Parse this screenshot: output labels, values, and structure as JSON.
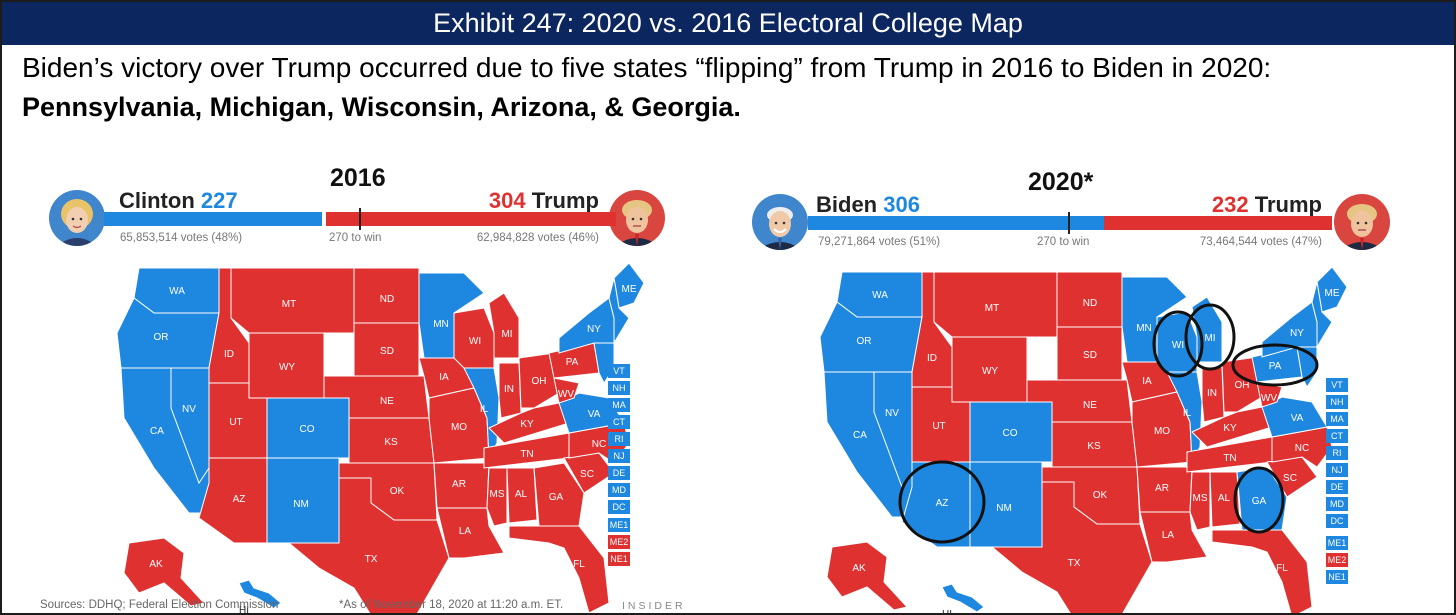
{
  "header": {
    "title": "Exhibit 247: 2020 vs. 2016 Electoral College Map",
    "subtitle_line1": "Biden’s victory over Trump occurred due to five states “flipping” from Trump in 2016 to Biden in 2020:",
    "subtitle_line2": "Pennsylvania, Michigan, Wisconsin, Arizona, & Georgia."
  },
  "colors": {
    "dem": "#1e87e0",
    "rep": "#e03131",
    "title_bar": "#0c2660"
  },
  "panels": {
    "left": {
      "year": "2016",
      "dem": {
        "name": "Clinton",
        "ev": "227",
        "votes": "65,853,514 votes (48%)",
        "avatar_icon": "clinton-portrait-icon"
      },
      "rep": {
        "name": "Trump",
        "ev": "304",
        "votes": "62,984,828 votes (46%)",
        "avatar_icon": "trump-portrait-icon"
      },
      "threshold": "270 to win",
      "small_states": [
        {
          "label": "VT",
          "party": "dem"
        },
        {
          "label": "NH",
          "party": "dem"
        },
        {
          "label": "MA",
          "party": "dem"
        },
        {
          "label": "CT",
          "party": "dem"
        },
        {
          "label": "RI",
          "party": "dem"
        },
        {
          "label": "NJ",
          "party": "dem"
        },
        {
          "label": "DE",
          "party": "dem"
        },
        {
          "label": "MD",
          "party": "dem"
        },
        {
          "label": "DC",
          "party": "dem"
        }
      ],
      "districts": [
        {
          "label": "ME1",
          "party": "dem"
        },
        {
          "label": "ME2",
          "party": "rep"
        },
        {
          "label": "NE1",
          "party": "rep"
        }
      ],
      "footer": {
        "sources": "Sources: DDHQ; Federal Election Commission",
        "asof": "*As of November 18, 2020 at 11:20 a.m. ET.",
        "brand": "INSIDER"
      }
    },
    "right": {
      "year": "2020*",
      "dem": {
        "name": "Biden",
        "ev": "306",
        "votes": "79,271,864 votes (51%)",
        "avatar_icon": "biden-portrait-icon"
      },
      "rep": {
        "name": "Trump",
        "ev": "232",
        "votes": "73,464,544 votes (47%)",
        "avatar_icon": "trump-portrait-icon"
      },
      "threshold": "270 to win",
      "small_states": [
        {
          "label": "VT",
          "party": "dem"
        },
        {
          "label": "NH",
          "party": "dem"
        },
        {
          "label": "MA",
          "party": "dem"
        },
        {
          "label": "CT",
          "party": "dem"
        },
        {
          "label": "RI",
          "party": "dem"
        },
        {
          "label": "NJ",
          "party": "dem"
        },
        {
          "label": "DE",
          "party": "dem"
        },
        {
          "label": "MD",
          "party": "dem"
        },
        {
          "label": "DC",
          "party": "dem"
        }
      ],
      "districts": [
        {
          "label": "ME1",
          "party": "dem"
        },
        {
          "label": "ME2",
          "party": "rep"
        },
        {
          "label": "NE1",
          "party": "dem"
        }
      ],
      "circled_states": [
        "AZ",
        "WI",
        "MI",
        "PA",
        "GA"
      ]
    }
  },
  "state_results": {
    "2016": {
      "WA": "dem",
      "OR": "dem",
      "CA": "dem",
      "NV": "dem",
      "ID": "rep",
      "MT": "rep",
      "WY": "rep",
      "UT": "rep",
      "AZ": "rep",
      "CO": "dem",
      "NM": "dem",
      "ND": "rep",
      "SD": "rep",
      "NE": "rep",
      "KS": "rep",
      "OK": "rep",
      "TX": "rep",
      "MN": "dem",
      "IA": "rep",
      "MO": "rep",
      "AR": "rep",
      "LA": "rep",
      "WI": "rep",
      "IL": "dem",
      "MI": "rep",
      "IN": "rep",
      "OH": "rep",
      "KY": "rep",
      "TN": "rep",
      "MS": "rep",
      "AL": "rep",
      "GA": "rep",
      "FL": "rep",
      "SC": "rep",
      "NC": "rep",
      "VA": "dem",
      "WV": "rep",
      "PA": "rep",
      "NY": "dem",
      "ME": "dem",
      "AK": "rep",
      "HI": "dem"
    },
    "2020": {
      "WA": "dem",
      "OR": "dem",
      "CA": "dem",
      "NV": "dem",
      "ID": "rep",
      "MT": "rep",
      "WY": "rep",
      "UT": "rep",
      "AZ": "dem",
      "CO": "dem",
      "NM": "dem",
      "ND": "rep",
      "SD": "rep",
      "NE": "rep",
      "KS": "rep",
      "OK": "rep",
      "TX": "rep",
      "MN": "dem",
      "IA": "rep",
      "MO": "rep",
      "AR": "rep",
      "LA": "rep",
      "WI": "dem",
      "IL": "dem",
      "MI": "dem",
      "IN": "rep",
      "OH": "rep",
      "KY": "rep",
      "TN": "rep",
      "MS": "rep",
      "AL": "rep",
      "GA": "dem",
      "FL": "rep",
      "SC": "rep",
      "NC": "rep",
      "VA": "dem",
      "WV": "rep",
      "PA": "dem",
      "NY": "dem",
      "ME": "dem",
      "AK": "rep",
      "HI": "dem"
    }
  }
}
